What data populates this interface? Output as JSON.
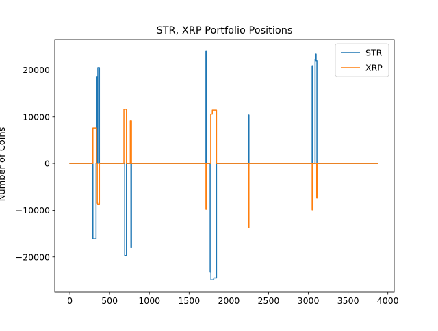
{
  "chart_data": {
    "type": "line",
    "title": "STR, XRP Portfolio Positions",
    "xlabel": "",
    "ylabel": "Number of Coins",
    "xlim": [
      -190,
      4080
    ],
    "ylim": [
      -27500,
      26500
    ],
    "xticks": [
      0,
      500,
      1000,
      1500,
      2000,
      2500,
      3000,
      3500,
      4000
    ],
    "yticks": [
      -20000,
      -10000,
      0,
      10000,
      20000
    ],
    "grid": false,
    "legend_position": "top-right",
    "line_style": "steps",
    "series": [
      {
        "name": "STR",
        "color": "#1f77b4",
        "points": [
          [
            0,
            0
          ],
          [
            290,
            0
          ],
          [
            290,
            -16100
          ],
          [
            330,
            -16100
          ],
          [
            330,
            0
          ],
          [
            338,
            0
          ],
          [
            338,
            18600
          ],
          [
            345,
            18600
          ],
          [
            345,
            0
          ],
          [
            352,
            0
          ],
          [
            352,
            20500
          ],
          [
            372,
            20500
          ],
          [
            372,
            0
          ],
          [
            690,
            0
          ],
          [
            690,
            -19700
          ],
          [
            712,
            -19700
          ],
          [
            712,
            0
          ],
          [
            768,
            0
          ],
          [
            768,
            -17900
          ],
          [
            775,
            -17900
          ],
          [
            775,
            0
          ],
          [
            1712,
            0
          ],
          [
            1712,
            24100
          ],
          [
            1718,
            24100
          ],
          [
            1718,
            0
          ],
          [
            1765,
            0
          ],
          [
            1765,
            -23200
          ],
          [
            1775,
            -23200
          ],
          [
            1775,
            -24900
          ],
          [
            1810,
            -24900
          ],
          [
            1810,
            -24500
          ],
          [
            1845,
            -24500
          ],
          [
            1845,
            0
          ],
          [
            2248,
            0
          ],
          [
            2248,
            10400
          ],
          [
            2253,
            10400
          ],
          [
            2253,
            0
          ],
          [
            3048,
            0
          ],
          [
            3048,
            20900
          ],
          [
            3055,
            20900
          ],
          [
            3055,
            0
          ],
          [
            3085,
            0
          ],
          [
            3085,
            22300
          ],
          [
            3092,
            22300
          ],
          [
            3092,
            23400
          ],
          [
            3098,
            23400
          ],
          [
            3098,
            22000
          ],
          [
            3108,
            22000
          ],
          [
            3108,
            0
          ],
          [
            3870,
            0
          ]
        ]
      },
      {
        "name": "XRP",
        "color": "#ff7f0e",
        "points": [
          [
            0,
            0
          ],
          [
            290,
            0
          ],
          [
            290,
            7600
          ],
          [
            335,
            7600
          ],
          [
            335,
            0
          ],
          [
            345,
            0
          ],
          [
            345,
            -8500
          ],
          [
            350,
            -8500
          ],
          [
            350,
            -8800
          ],
          [
            372,
            -8800
          ],
          [
            372,
            0
          ],
          [
            680,
            0
          ],
          [
            680,
            11600
          ],
          [
            712,
            11600
          ],
          [
            712,
            0
          ],
          [
            760,
            0
          ],
          [
            760,
            9100
          ],
          [
            775,
            9100
          ],
          [
            775,
            0
          ],
          [
            1712,
            0
          ],
          [
            1712,
            -9800
          ],
          [
            1718,
            -9800
          ],
          [
            1718,
            0
          ],
          [
            1772,
            0
          ],
          [
            1772,
            10600
          ],
          [
            1792,
            10600
          ],
          [
            1792,
            11400
          ],
          [
            1845,
            11400
          ],
          [
            1845,
            0
          ],
          [
            2248,
            0
          ],
          [
            2248,
            -13700
          ],
          [
            2253,
            -13700
          ],
          [
            2253,
            0
          ],
          [
            3048,
            0
          ],
          [
            3048,
            -9900
          ],
          [
            3055,
            -9900
          ],
          [
            3055,
            0
          ],
          [
            3105,
            0
          ],
          [
            3105,
            -7400
          ],
          [
            3112,
            -7400
          ],
          [
            3112,
            0
          ],
          [
            3870,
            0
          ]
        ]
      }
    ]
  }
}
